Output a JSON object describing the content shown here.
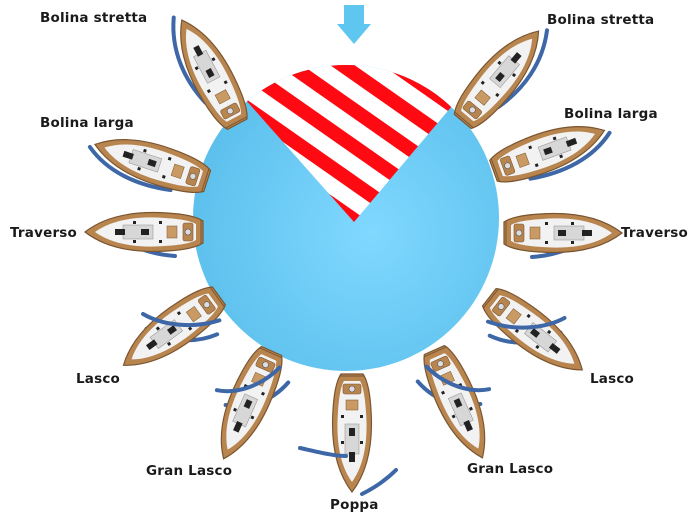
{
  "points_of_sail": {
    "close_hauled": "Bolina stretta",
    "close_reach": "Bolina larga",
    "beam_reach": "Traverso",
    "broad_reach": "Lasco",
    "very_broad_reach": "Gran Lasco",
    "running": "Poppa"
  },
  "colors": {
    "wind_arrow": "#5fc6ef",
    "circle": "#6ccbf3",
    "no_go_stripe_red": "#ff0a12",
    "no_go_stripe_white": "#ffffff",
    "hull": "#b8854f",
    "deck": "#f2f2f2",
    "sail": "#3d67a6",
    "label": "#1a1a1a"
  },
  "icons": {
    "wind": "wind-arrow-icon",
    "boat": "sailboat-icon"
  }
}
